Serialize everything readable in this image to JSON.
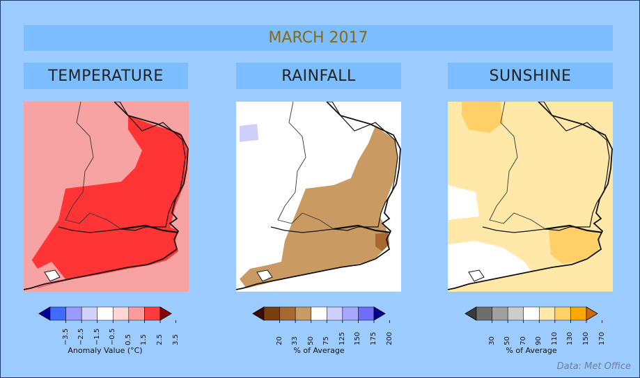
{
  "title": "MARCH 2017",
  "panels": [
    {
      "heading": "TEMPERATURE",
      "legend_ticks": [
        "−3.5",
        "−2.5",
        "−1.5",
        "−0.5",
        "0.5",
        "1.5",
        "2.5",
        "3.5"
      ],
      "legend_caption": "Anomaly Value (°C)",
      "legend_colors": [
        "#0000a0",
        "#3f6bff",
        "#9b9bff",
        "#d2d2ff",
        "#ffffff",
        "#ffd5d5",
        "#ff9a9a",
        "#ff3b3b",
        "#8b0000"
      ],
      "map_colors": {
        "base": "#f7a3a3",
        "hot": "#ff3434"
      }
    },
    {
      "heading": "RAINFALL",
      "legend_ticks": [
        "20",
        "33",
        "50",
        "75",
        "125",
        "150",
        "175",
        "200"
      ],
      "legend_caption": "% of Average",
      "legend_colors": [
        "#3d0a00",
        "#7a3e0e",
        "#a8692e",
        "#c99a62",
        "#ffffff",
        "#cfcffb",
        "#a7a7ff",
        "#6e6efb",
        "#000090"
      ],
      "map_colors": {
        "base": "#ffffff",
        "dry": "#c99a62",
        "drier": "#a8692e",
        "wet": "#cfcffb"
      }
    },
    {
      "heading": "SUNSHINE",
      "legend_ticks": [
        "30",
        "50",
        "70",
        "90",
        "110",
        "130",
        "150",
        "170"
      ],
      "legend_caption": "% of Average",
      "legend_colors": [
        "#3a3a3a",
        "#6e6e6e",
        "#a0a0a0",
        "#cccccc",
        "#ffffff",
        "#ffe8a8",
        "#ffd068",
        "#ffa800",
        "#d06a00"
      ],
      "map_colors": {
        "base": "#ffe8a8",
        "sunny": "#ffd068",
        "dull": "#ffffff"
      }
    }
  ],
  "credit": "Data: Met Office"
}
